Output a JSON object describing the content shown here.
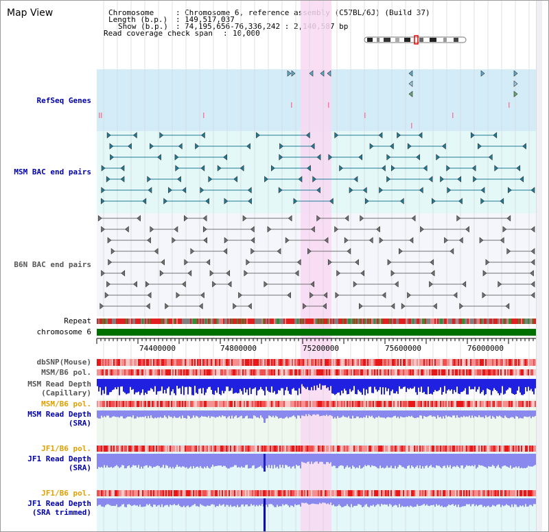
{
  "view_title": "Map View",
  "info": {
    "chromosome_label": "Chromosome",
    "chromosome_value": "Chromosome 6, reference assembly (C57BL/6J) (Build 37)",
    "length_label": "Length (b.p.)",
    "length_value": "149,517,037",
    "show_label": "Show (b.p.)",
    "show_value": "74,195,656-76,336,242 : 2,140,587 bp",
    "coverage_label": "Read coverage check span",
    "coverage_value": "10,000"
  },
  "tracks": {
    "refseq": "RefSeq Genes",
    "msm_bac": "MSM BAC end pairs",
    "b6n_bac": "B6N BAC end pairs",
    "repeat": "Repeat",
    "chromosome": "chromosome 6",
    "dbsnp": "dbSNP(Mouse)",
    "msm_b6_pol_1": "MSM/B6 pol.",
    "msm_read_depth_cap_1": "MSM Read Depth",
    "msm_read_depth_cap_2": "(Capillary)",
    "msm_b6_pol_2": "MSM/B6 pol.",
    "msm_read_depth_sra_1": "MSM Read Depth",
    "msm_read_depth_sra_2": "(SRA)",
    "jf1_b6_pol_1": "JF1/B6 pol.",
    "jf1_read_depth_sra_1": "JF1 Read Depth",
    "jf1_read_depth_sra_2": "(SRA)",
    "jf1_b6_pol_2": "JF1/B6 pol.",
    "jf1_read_depth_trim_1": "JF1 Read Depth",
    "jf1_read_depth_trim_2": "(SRA trimmed)"
  },
  "axis_ticks": [
    "74400000",
    "74800000",
    "75200000",
    "75600000",
    "76000000"
  ],
  "colors": {
    "highlight": "#f8d8f2",
    "refseq_bg": "#d4ecf8",
    "msm_bg": "#e4f8f8",
    "gray_bg": "#f4f6fb",
    "green_bg": "#eef8ee",
    "cyan_bg": "#e4f8fa",
    "chromosome_bar": "#007000",
    "depth_dark": "#2020e0",
    "depth_light": "#8888ee"
  }
}
